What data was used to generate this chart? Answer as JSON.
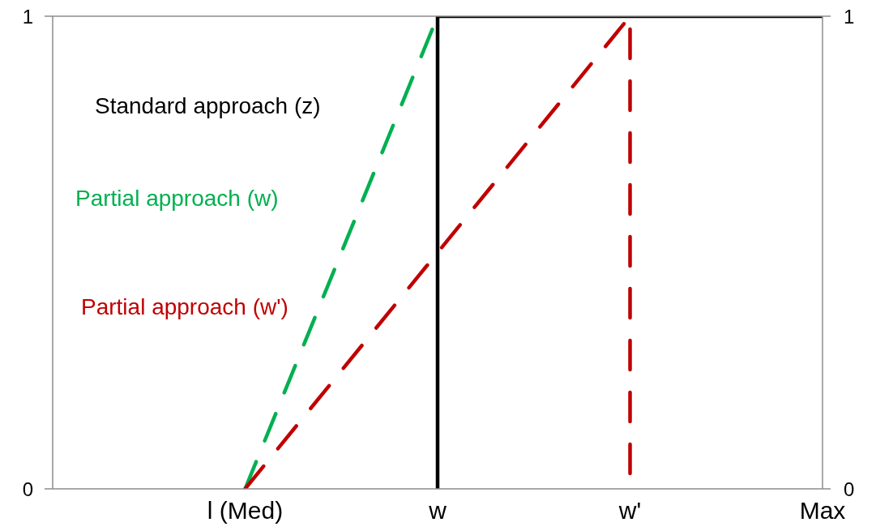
{
  "chart_data": {
    "type": "line",
    "marker": "none",
    "categories": [
      "l (Med)",
      "w",
      "w'",
      "Max"
    ],
    "ylim": [
      0,
      1
    ],
    "yticks": [
      0,
      1
    ],
    "y2lim": [
      0,
      1
    ],
    "y2ticks": [
      0,
      1
    ],
    "series": [
      {
        "name": "Standard approach (z)",
        "color": "#000000",
        "line_style": "solid",
        "x": [
          "w",
          "w",
          "Max"
        ],
        "values": [
          0,
          1,
          1
        ]
      },
      {
        "name": "Partial approach (w)",
        "color": "#00b050",
        "line_style": "dashed",
        "x": [
          "l (Med)",
          "w"
        ],
        "values": [
          0,
          1
        ]
      },
      {
        "name": "Partial approach (w')",
        "color": "#c00000",
        "line_style": "dashed",
        "x": [
          "l (Med)",
          "w'",
          "w'"
        ],
        "values": [
          0,
          1,
          0
        ]
      }
    ]
  }
}
